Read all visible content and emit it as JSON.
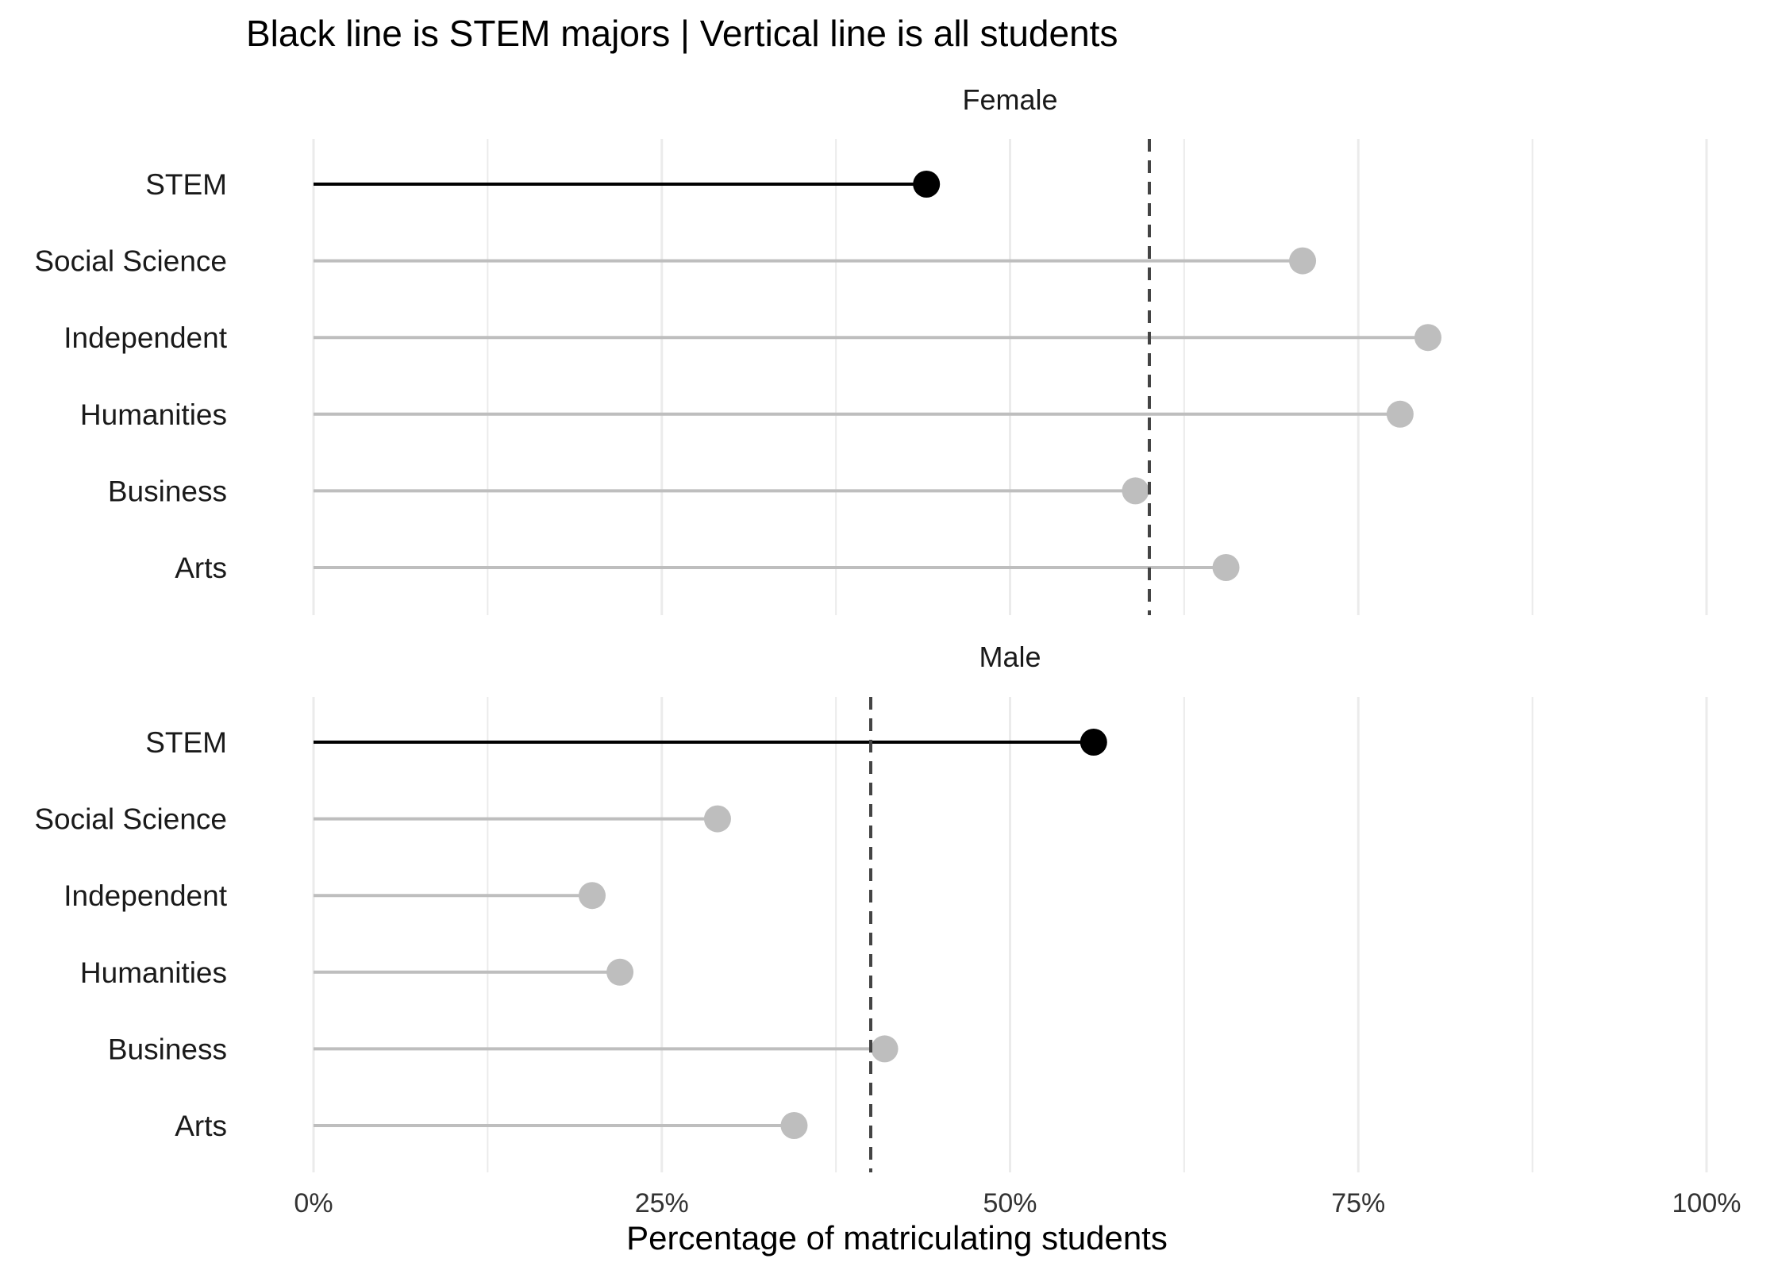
{
  "chart_data": {
    "type": "lollipop",
    "title": "Black line is STEM majors | Vertical line is all students",
    "xlabel": "Percentage of matriculating students",
    "ylabel": "",
    "xlim": [
      0,
      100
    ],
    "x_ticks": [
      0,
      25,
      50,
      75,
      100
    ],
    "x_tick_labels": [
      "0%",
      "25%",
      "50%",
      "75%",
      "100%"
    ],
    "categories": [
      "STEM",
      "Social Science",
      "Independent",
      "Humanities",
      "Business",
      "Arts"
    ],
    "highlight_category": "STEM",
    "colors": {
      "highlight": "#000000",
      "other": "#bebebe",
      "reference": "#444444",
      "grid": "#ebebeb"
    },
    "grid": true,
    "facets": [
      {
        "name": "Female",
        "values": [
          44,
          71,
          80,
          78,
          59,
          65.5
        ],
        "reference_line": 60
      },
      {
        "name": "Male",
        "values": [
          56,
          29,
          20,
          22,
          41,
          34.5
        ],
        "reference_line": 40
      }
    ]
  }
}
